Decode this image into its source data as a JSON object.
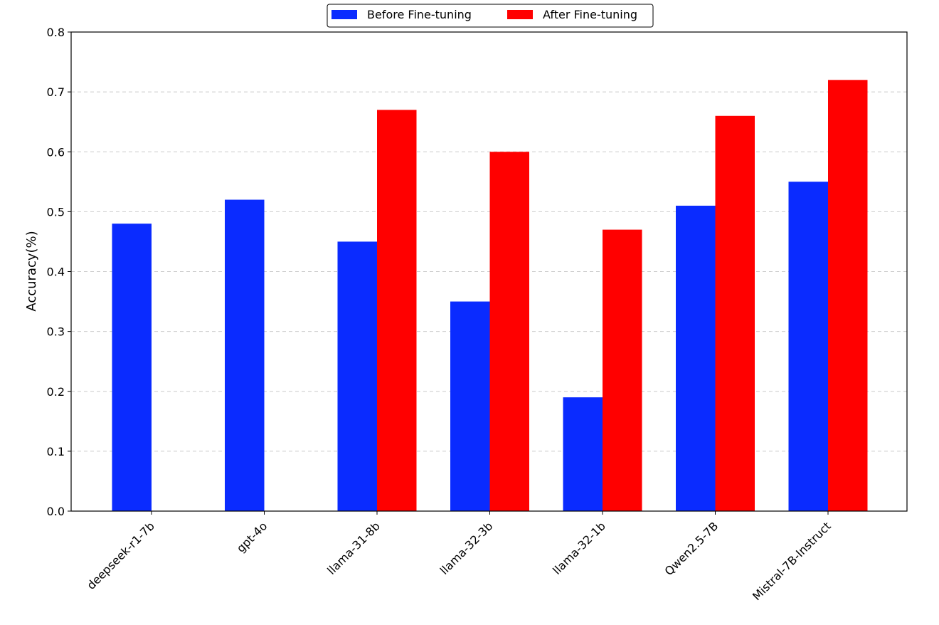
{
  "chart_data": {
    "type": "bar",
    "title": "",
    "xlabel": "",
    "ylabel": "Accuracy(%)",
    "ylim": [
      0,
      0.8
    ],
    "yticks": [
      "0.0",
      "0.1",
      "0.2",
      "0.3",
      "0.4",
      "0.5",
      "0.6",
      "0.7",
      "0.8"
    ],
    "grid": "horizontal dashed",
    "legend_position": "top-center",
    "categories": [
      "deepseek-r1-7b",
      "gpt-4o",
      "llama-31-8b",
      "llama-32-3b",
      "llama-32-1b",
      "Qwen2.5-7B",
      "Mistral-7B-Instruct"
    ],
    "series": [
      {
        "name": "Before Fine-tuning",
        "color": "#0a2bff",
        "values": [
          0.48,
          0.52,
          0.45,
          0.35,
          0.19,
          0.51,
          0.55
        ]
      },
      {
        "name": "After Fine-tuning",
        "color": "#ff0000",
        "values": [
          null,
          null,
          0.67,
          0.6,
          0.47,
          0.66,
          0.72
        ]
      }
    ]
  }
}
